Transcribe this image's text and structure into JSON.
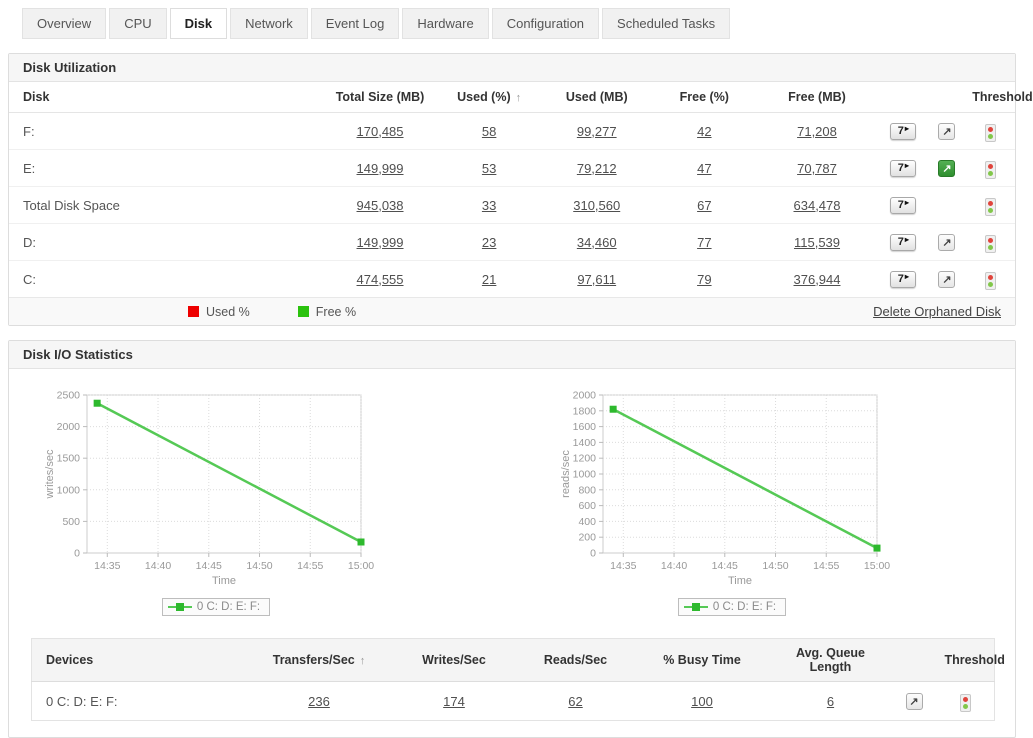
{
  "tabs": {
    "items": [
      {
        "label": "Overview",
        "active": false
      },
      {
        "label": "CPU",
        "active": false
      },
      {
        "label": "Disk",
        "active": true
      },
      {
        "label": "Network",
        "active": false
      },
      {
        "label": "Event Log",
        "active": false
      },
      {
        "label": "Hardware",
        "active": false
      },
      {
        "label": "Configuration",
        "active": false
      },
      {
        "label": "Scheduled Tasks",
        "active": false
      }
    ]
  },
  "disk_utilization": {
    "title": "Disk Utilization",
    "headers": {
      "disk": "Disk",
      "total": "Total Size (MB)",
      "used_pct": "Used (%)",
      "used_mb": "Used (MB)",
      "free_pct": "Free (%)",
      "free_mb": "Free (MB)",
      "threshold": "Threshold"
    },
    "sort_icon": "↑",
    "report_button_label": "7",
    "bar_colors": {
      "used": "#e9554d",
      "free": "#9aca3c"
    },
    "rows": [
      {
        "disk": "F:",
        "total": "170,485",
        "used_pct": "58",
        "used_mb": "99,277",
        "free_pct": "42",
        "free_mb": "71,208",
        "graph_icon": "gray"
      },
      {
        "disk": "E:",
        "total": "149,999",
        "used_pct": "53",
        "used_mb": "79,212",
        "free_pct": "47",
        "free_mb": "70,787",
        "graph_icon": "green"
      },
      {
        "disk": "Total Disk Space",
        "total": "945,038",
        "used_pct": "33",
        "used_mb": "310,560",
        "free_pct": "67",
        "free_mb": "634,478",
        "graph_icon": "none"
      },
      {
        "disk": "D:",
        "total": "149,999",
        "used_pct": "23",
        "used_mb": "34,460",
        "free_pct": "77",
        "free_mb": "115,539",
        "graph_icon": "gray"
      },
      {
        "disk": "C:",
        "total": "474,555",
        "used_pct": "21",
        "used_mb": "97,611",
        "free_pct": "79",
        "free_mb": "376,944",
        "graph_icon": "gray"
      }
    ],
    "legend": {
      "used": "Used %",
      "free": "Free %",
      "used_color": "#ee0000",
      "free_color": "#2bc20e"
    },
    "footer_link": "Delete Orphaned Disk"
  },
  "disk_io": {
    "title": "Disk I/O Statistics",
    "table": {
      "headers": {
        "devices": "Devices",
        "transfers": "Transfers/Sec",
        "writes": "Writes/Sec",
        "reads": "Reads/Sec",
        "busy": "% Busy Time",
        "queue": "Avg. Queue Length",
        "threshold": "Threshold"
      },
      "sort_icon": "↑",
      "rows": [
        {
          "device": "0 C: D: E: F:",
          "transfers": "236",
          "writes": "174",
          "reads": "62",
          "busy": "100",
          "queue": "6"
        }
      ]
    }
  },
  "chart_data": [
    {
      "type": "line",
      "title": "",
      "xlabel": "Time",
      "ylabel": "writes/sec",
      "x_ticks": [
        "14:35",
        "14:40",
        "14:45",
        "14:50",
        "14:55",
        "15:00"
      ],
      "xlim": [
        "14:33",
        "15:00"
      ],
      "ylim": [
        0,
        2500
      ],
      "y_ticks": [
        0,
        500,
        1000,
        1500,
        2000,
        2500
      ],
      "grid": true,
      "legend_position": "bottom",
      "series": [
        {
          "name": "0 C: D: E: F:",
          "color": "#55c955",
          "marker_color": "#2db92d",
          "points": [
            {
              "x": "14:34",
              "y": 2370
            },
            {
              "x": "15:00",
              "y": 174
            }
          ]
        }
      ]
    },
    {
      "type": "line",
      "title": "",
      "xlabel": "Time",
      "ylabel": "reads/sec",
      "x_ticks": [
        "14:35",
        "14:40",
        "14:45",
        "14:50",
        "14:55",
        "15:00"
      ],
      "xlim": [
        "14:33",
        "15:00"
      ],
      "ylim": [
        0,
        2000
      ],
      "y_ticks": [
        0,
        200,
        400,
        600,
        800,
        1000,
        1200,
        1400,
        1600,
        1800,
        2000
      ],
      "grid": true,
      "legend_position": "bottom",
      "series": [
        {
          "name": "0 C: D: E: F:",
          "color": "#55c955",
          "marker_color": "#2db92d",
          "points": [
            {
              "x": "14:34",
              "y": 1820
            },
            {
              "x": "15:00",
              "y": 62
            }
          ]
        }
      ]
    }
  ]
}
